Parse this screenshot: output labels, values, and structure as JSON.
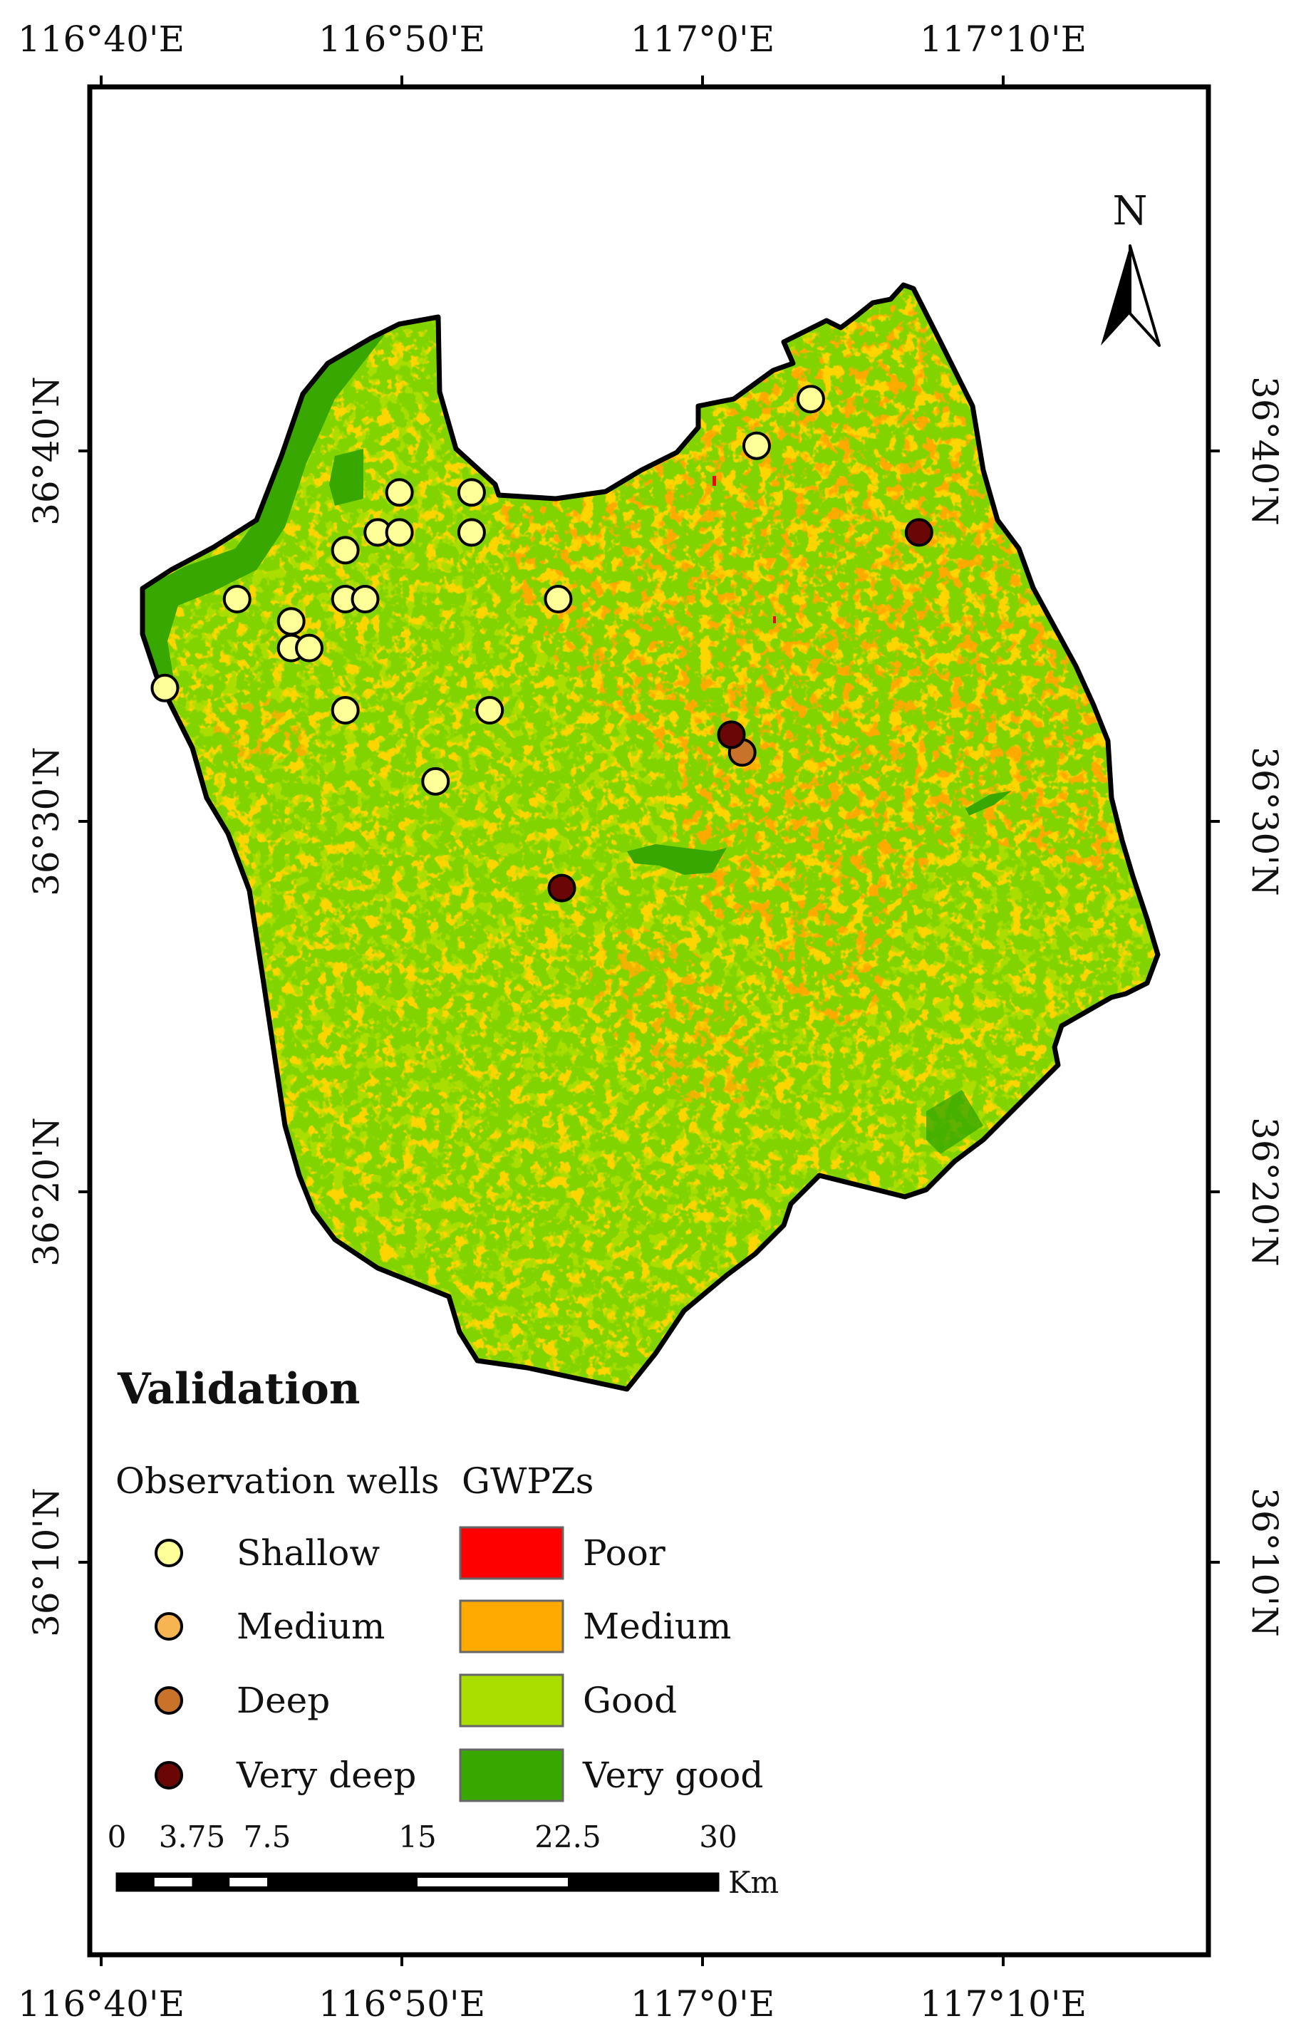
{
  "map": {
    "title": "Validation",
    "north_label": "N",
    "graticule": {
      "lon_labels": [
        "116°40'E",
        "116°50'E",
        "117°0'E",
        "117°10'E"
      ],
      "lat_labels": [
        "36°40'N",
        "36°30'N",
        "36°20'N",
        "36°10'N"
      ]
    }
  },
  "legend": {
    "wells": {
      "header": "Observation wells",
      "items": [
        {
          "label": "Shallow",
          "color": "#ffff99"
        },
        {
          "label": "Medium",
          "color": "#f7b552"
        },
        {
          "label": "Deep",
          "color": "#c8722a"
        },
        {
          "label": "Very deep",
          "color": "#6b0606"
        }
      ]
    },
    "zones": {
      "header": "GWPZs",
      "items": [
        {
          "label": "Poor",
          "color": "#ff0000"
        },
        {
          "label": "Medium",
          "color": "#ffaa00"
        },
        {
          "label": "Good",
          "color": "#aadd00"
        },
        {
          "label": "Very good",
          "color": "#38a800"
        }
      ]
    }
  },
  "scale_bar": {
    "labels": [
      "0",
      "3.75",
      "7.5",
      "15",
      "22.5",
      "30"
    ],
    "unit": "Km"
  },
  "wells": {
    "shallow": [
      {
        "lon": 116.832,
        "lat": 36.648
      },
      {
        "lon": 116.872,
        "lat": 36.648
      },
      {
        "lon": 117.03,
        "lat": 36.669
      },
      {
        "lon": 117.06,
        "lat": 36.69
      },
      {
        "lon": 116.82,
        "lat": 36.63
      },
      {
        "lon": 116.832,
        "lat": 36.63
      },
      {
        "lon": 116.872,
        "lat": 36.63
      },
      {
        "lon": 116.802,
        "lat": 36.622
      },
      {
        "lon": 116.742,
        "lat": 36.6
      },
      {
        "lon": 116.802,
        "lat": 36.6
      },
      {
        "lon": 116.813,
        "lat": 36.6
      },
      {
        "lon": 116.92,
        "lat": 36.6
      },
      {
        "lon": 116.772,
        "lat": 36.59
      },
      {
        "lon": 116.772,
        "lat": 36.578
      },
      {
        "lon": 116.782,
        "lat": 36.578
      },
      {
        "lon": 116.702,
        "lat": 36.56
      },
      {
        "lon": 116.802,
        "lat": 36.55
      },
      {
        "lon": 116.882,
        "lat": 36.55
      },
      {
        "lon": 116.852,
        "lat": 36.518
      }
    ],
    "deep": [
      {
        "lon": 117.022,
        "lat": 36.531
      }
    ],
    "very_deep": [
      {
        "lon": 117.12,
        "lat": 36.63
      },
      {
        "lon": 117.016,
        "lat": 36.539
      },
      {
        "lon": 116.922,
        "lat": 36.47
      }
    ]
  }
}
